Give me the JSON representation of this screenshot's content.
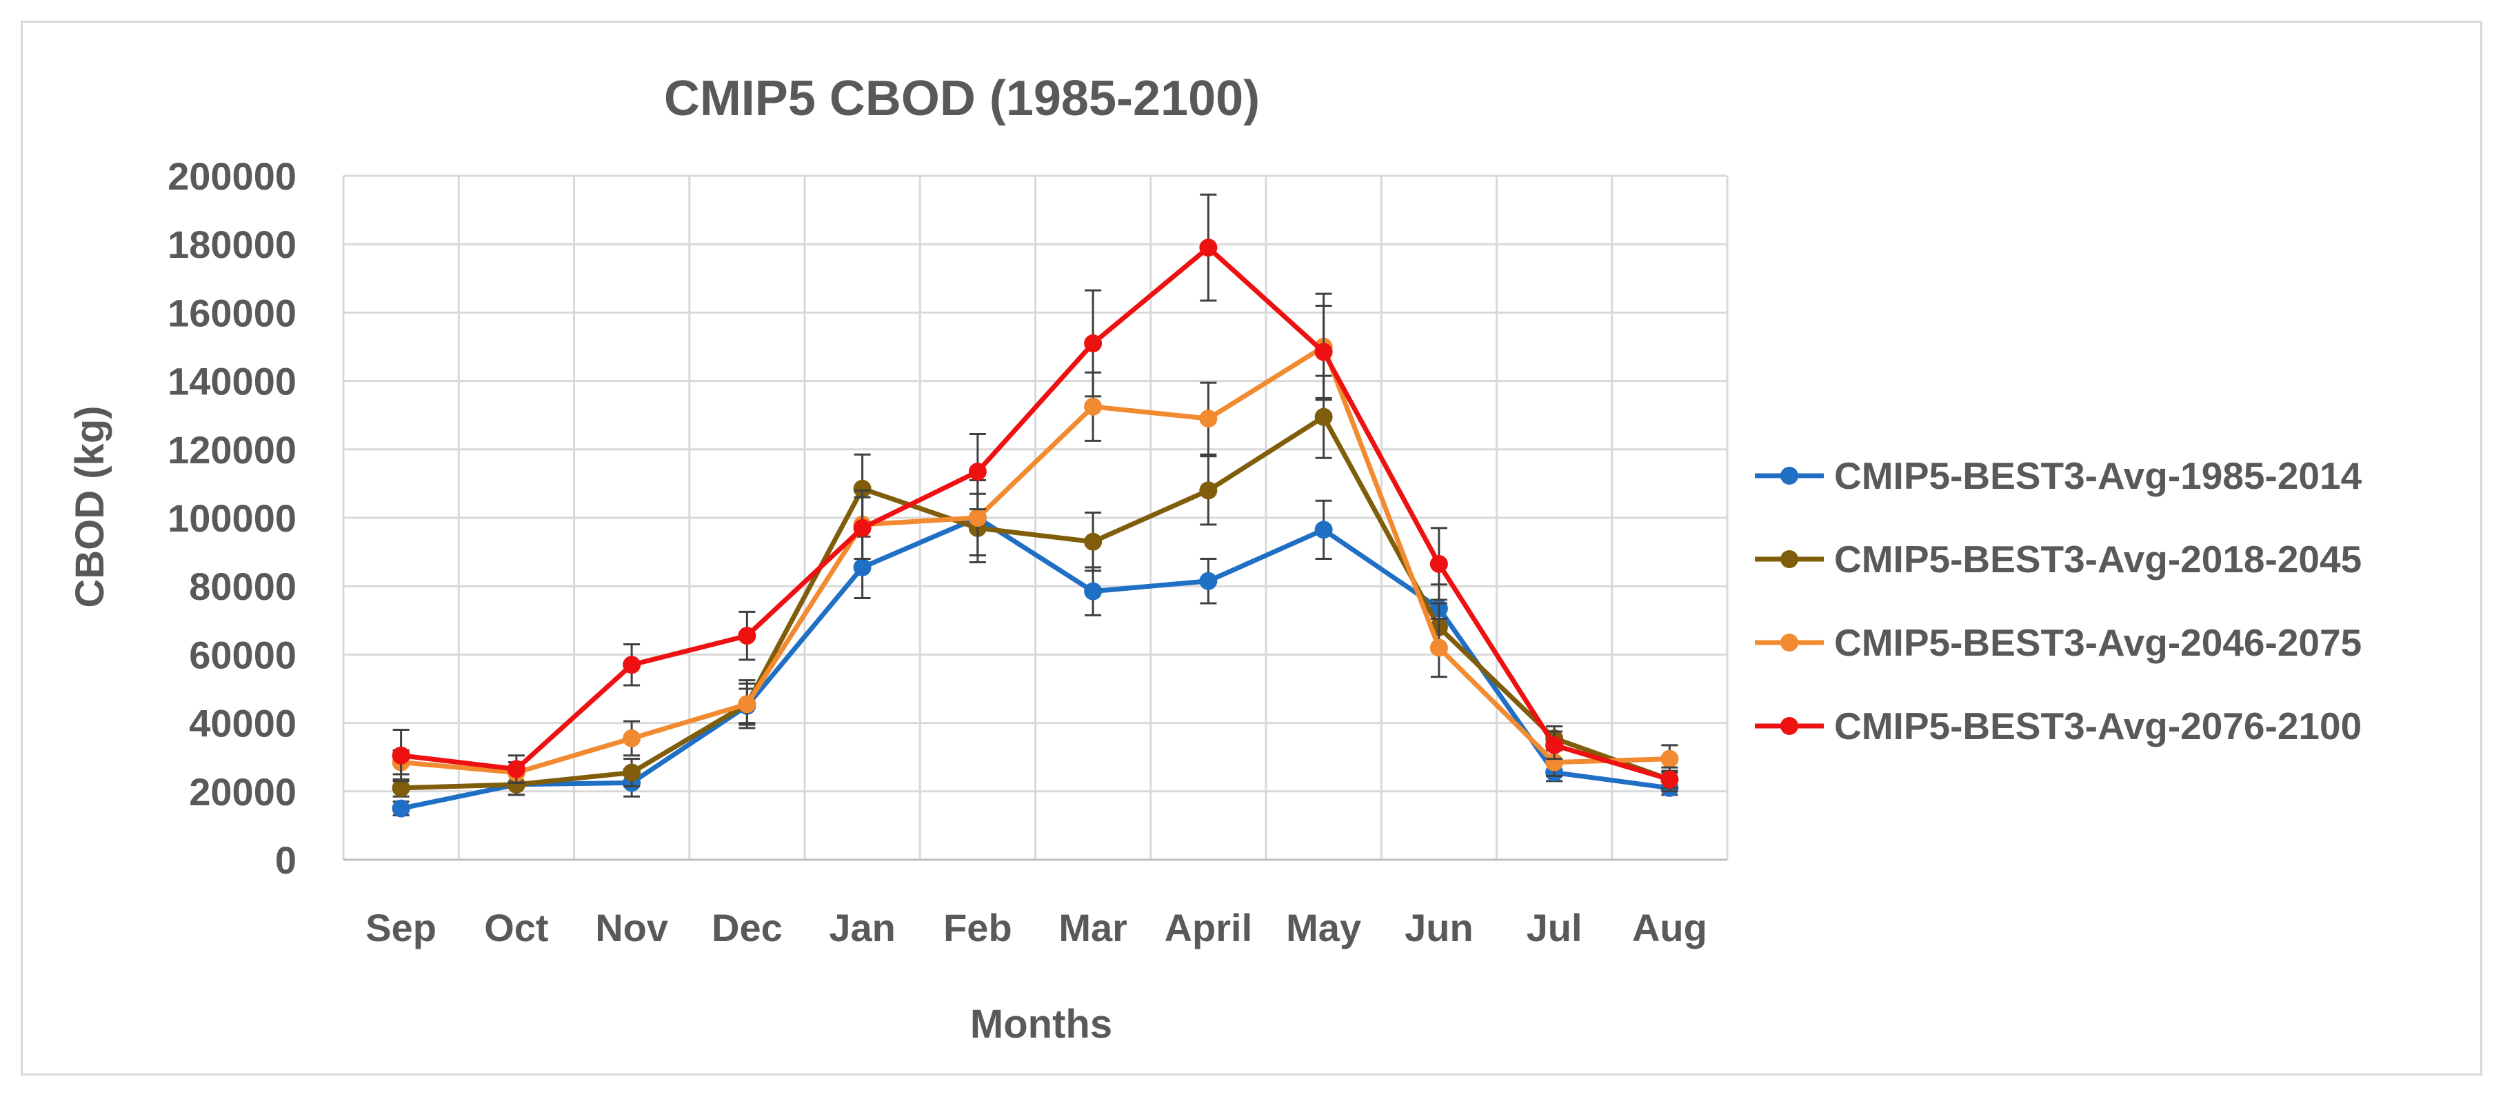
{
  "chart_data": {
    "type": "line",
    "title": "CMIP5 CBOD (1985-2100)",
    "xlabel": "Months",
    "ylabel": "CBOD  (kg)",
    "ylim": [
      0,
      200000
    ],
    "yticks": [
      "0",
      "20000",
      "40000",
      "60000",
      "80000",
      "100000",
      "120000",
      "140000",
      "160000",
      "180000",
      "200000"
    ],
    "ytick_values": [
      0,
      20000,
      40000,
      60000,
      80000,
      100000,
      120000,
      140000,
      160000,
      180000,
      200000
    ],
    "categories": [
      "Sep",
      "Oct",
      "Nov",
      "Dec",
      "Jan",
      "Feb",
      "Mar",
      "April",
      "May",
      "Jun",
      "Jul",
      "Aug"
    ],
    "grid": true,
    "legend_position": "right",
    "series": [
      {
        "name": "CMIP5-BEST3-Avg-1985-2014",
        "color": "#1f6fc4",
        "values": [
          15000,
          22000,
          22500,
          45000,
          85500,
          100000,
          78500,
          81500,
          96500,
          73500,
          25500,
          21000
        ],
        "errors": [
          2000,
          3000,
          4000,
          5000,
          9000,
          11000,
          7000,
          6500,
          8500,
          7000,
          2500,
          2000
        ]
      },
      {
        "name": "CMIP5-BEST3-Avg-2018-2045",
        "color": "#7f5d0a",
        "values": [
          21000,
          22000,
          25500,
          45500,
          108500,
          97000,
          93000,
          108000,
          129500,
          68000,
          35500,
          23500
        ],
        "errors": [
          2500,
          3000,
          4000,
          6000,
          10000,
          10000,
          8500,
          10000,
          12000,
          7000,
          3500,
          2500
        ]
      },
      {
        "name": "CMIP5-BEST3-Avg-2046-2075",
        "color": "#f28a30",
        "values": [
          28500,
          25500,
          35500,
          45500,
          98000,
          100000,
          132500,
          129000,
          150000,
          62000,
          28500,
          29500
        ],
        "errors": [
          3500,
          3000,
          5000,
          7000,
          10000,
          11000,
          10000,
          10500,
          15500,
          8500,
          4000,
          4000
        ]
      },
      {
        "name": "CMIP5-BEST3-Avg-2076-2100",
        "color": "#ee1111",
        "values": [
          30500,
          26500,
          57000,
          65500,
          97000,
          113500,
          151000,
          179000,
          148500,
          86500,
          33500,
          23500
        ],
        "errors": [
          7500,
          4000,
          6000,
          7000,
          9000,
          11000,
          15500,
          15500,
          13500,
          10500,
          4000,
          3500
        ]
      }
    ]
  }
}
